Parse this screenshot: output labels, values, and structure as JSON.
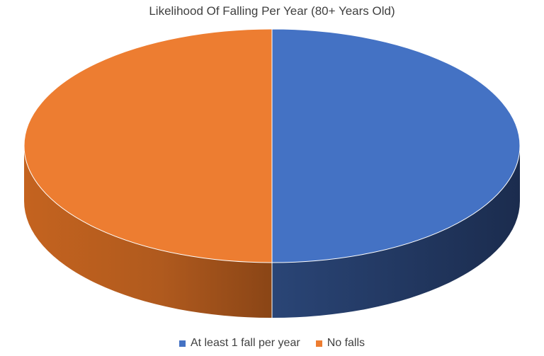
{
  "chart_data": {
    "type": "pie",
    "title": "Likelihood Of Falling Per Year (80+ Years Old)",
    "categories": [
      "At least 1 fall per year",
      "No falls"
    ],
    "values": [
      50,
      50
    ],
    "colors": [
      "#4472C4",
      "#ED7D31"
    ],
    "legend": "bottom",
    "style": "3d"
  }
}
